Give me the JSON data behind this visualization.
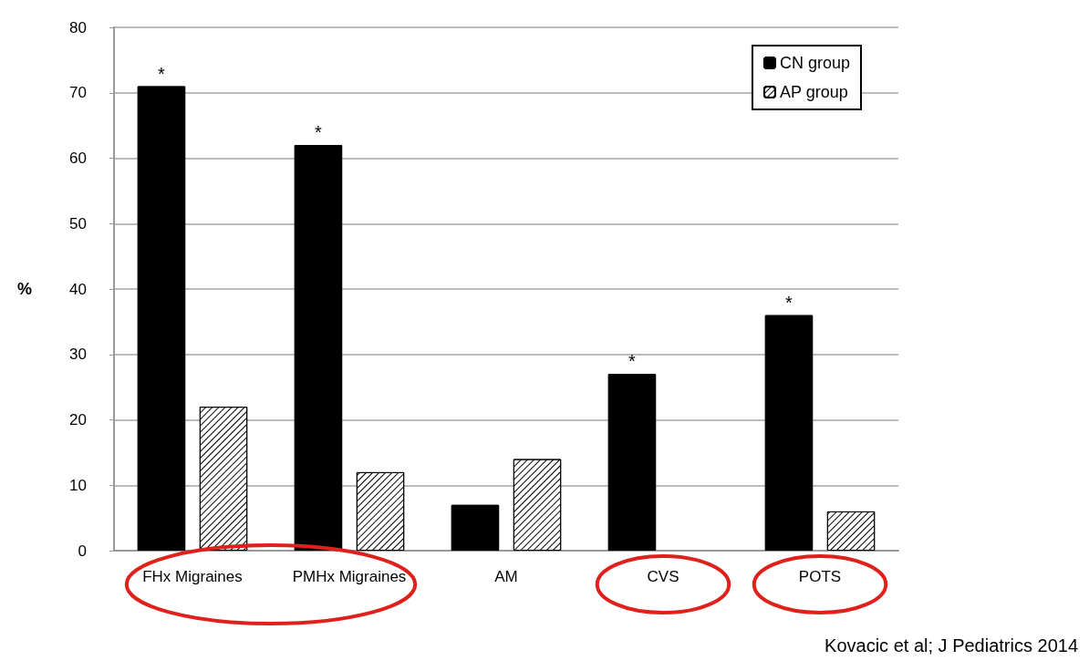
{
  "chart_data": {
    "type": "bar",
    "ylabel": "%",
    "categories": [
      "FHx Migraines",
      "PMHx Migraines",
      "AM",
      "CVS",
      "POTS"
    ],
    "series": [
      {
        "name": "CN group",
        "color": "#000000",
        "values": [
          71,
          62,
          7,
          27,
          36
        ],
        "value_labels": [
          "*",
          "*",
          null,
          "*",
          "*"
        ]
      },
      {
        "name": "AP group",
        "color": "#ffffff",
        "values": [
          22,
          12,
          14,
          0,
          6
        ]
      }
    ],
    "ylim": [
      0,
      80
    ],
    "yticks": [
      0,
      10,
      20,
      30,
      40,
      50,
      60,
      70,
      80
    ],
    "grid": "y",
    "legend": "top right",
    "annotations": [
      "Kovacic et al; J Pediatrics 2014"
    ]
  }
}
